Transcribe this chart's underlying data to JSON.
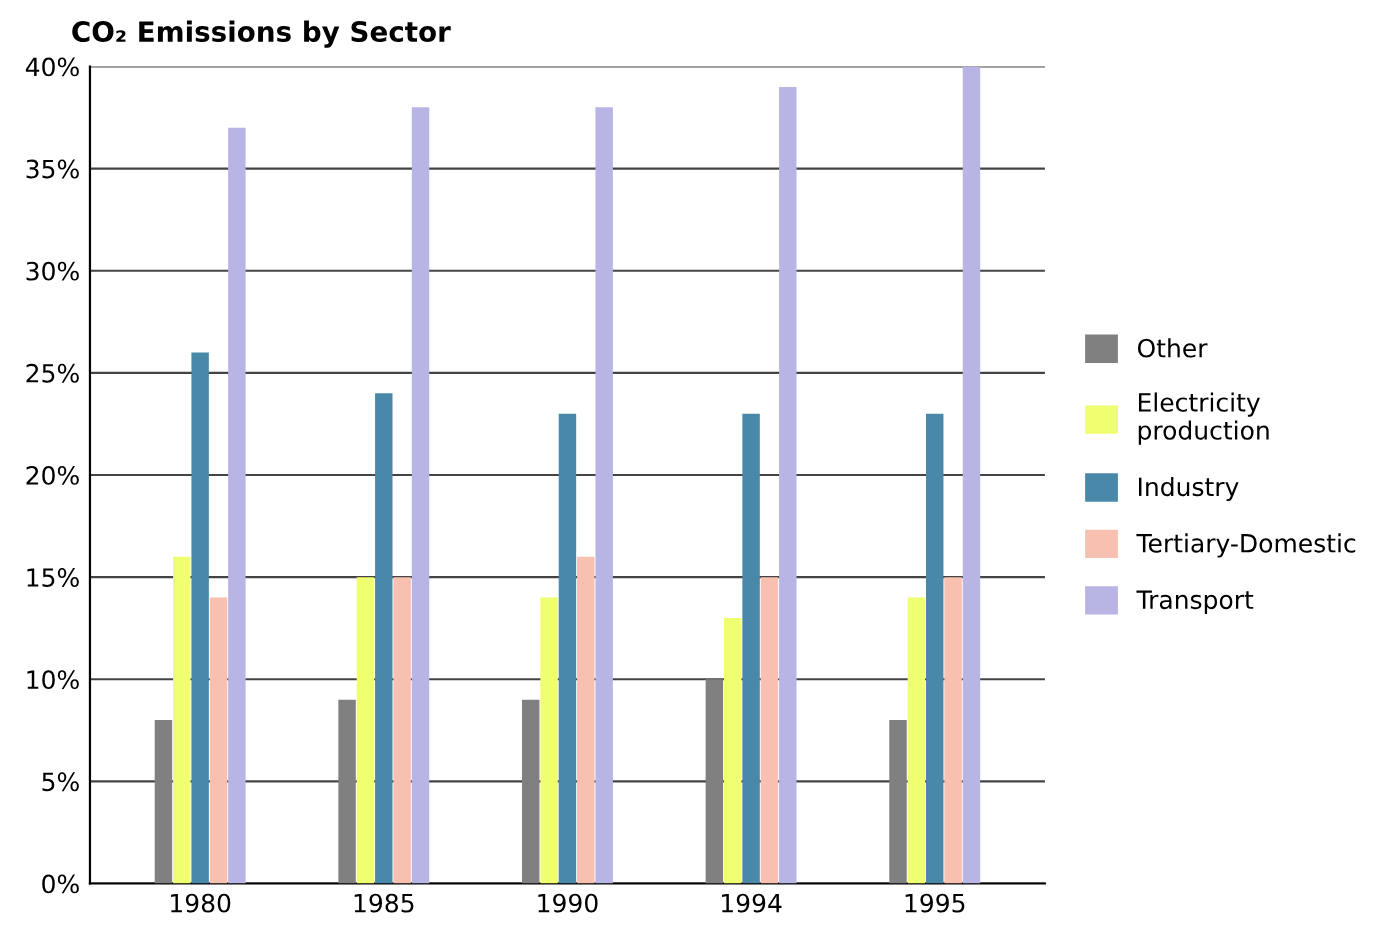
{
  "chart_data": {
    "type": "bar",
    "title": "CO₂ Emissions by Sector",
    "categories": [
      "1980",
      "1985",
      "1990",
      "1994",
      "1995"
    ],
    "series": [
      {
        "name": "Other",
        "color": "#808080",
        "values": [
          8,
          9,
          9,
          10,
          8
        ]
      },
      {
        "name": "Electricity\nproduction",
        "color": "#f0ff70",
        "values": [
          16,
          15,
          14,
          13,
          14
        ]
      },
      {
        "name": "Industry",
        "color": "#4a88aa",
        "values": [
          26,
          24,
          23,
          23,
          23
        ]
      },
      {
        "name": "Tertiary-Domestic",
        "color": "#f8c0b0",
        "values": [
          14,
          15,
          16,
          15,
          15
        ]
      },
      {
        "name": "Transport",
        "color": "#b8b4e4",
        "values": [
          37,
          38,
          38,
          39,
          40
        ]
      }
    ],
    "ylim": [
      0,
      40
    ],
    "yticks": [
      {
        "value": 0,
        "label": "0%"
      },
      {
        "value": 5,
        "label": "5%"
      },
      {
        "value": 10,
        "label": "10%"
      },
      {
        "value": 15,
        "label": "15%"
      },
      {
        "value": 20,
        "label": "20%"
      },
      {
        "value": 25,
        "label": "25%"
      },
      {
        "value": 30,
        "label": "30%"
      },
      {
        "value": 35,
        "label": "35%"
      },
      {
        "value": 40,
        "label": "40%"
      }
    ],
    "grid": "y",
    "legend": "right"
  }
}
